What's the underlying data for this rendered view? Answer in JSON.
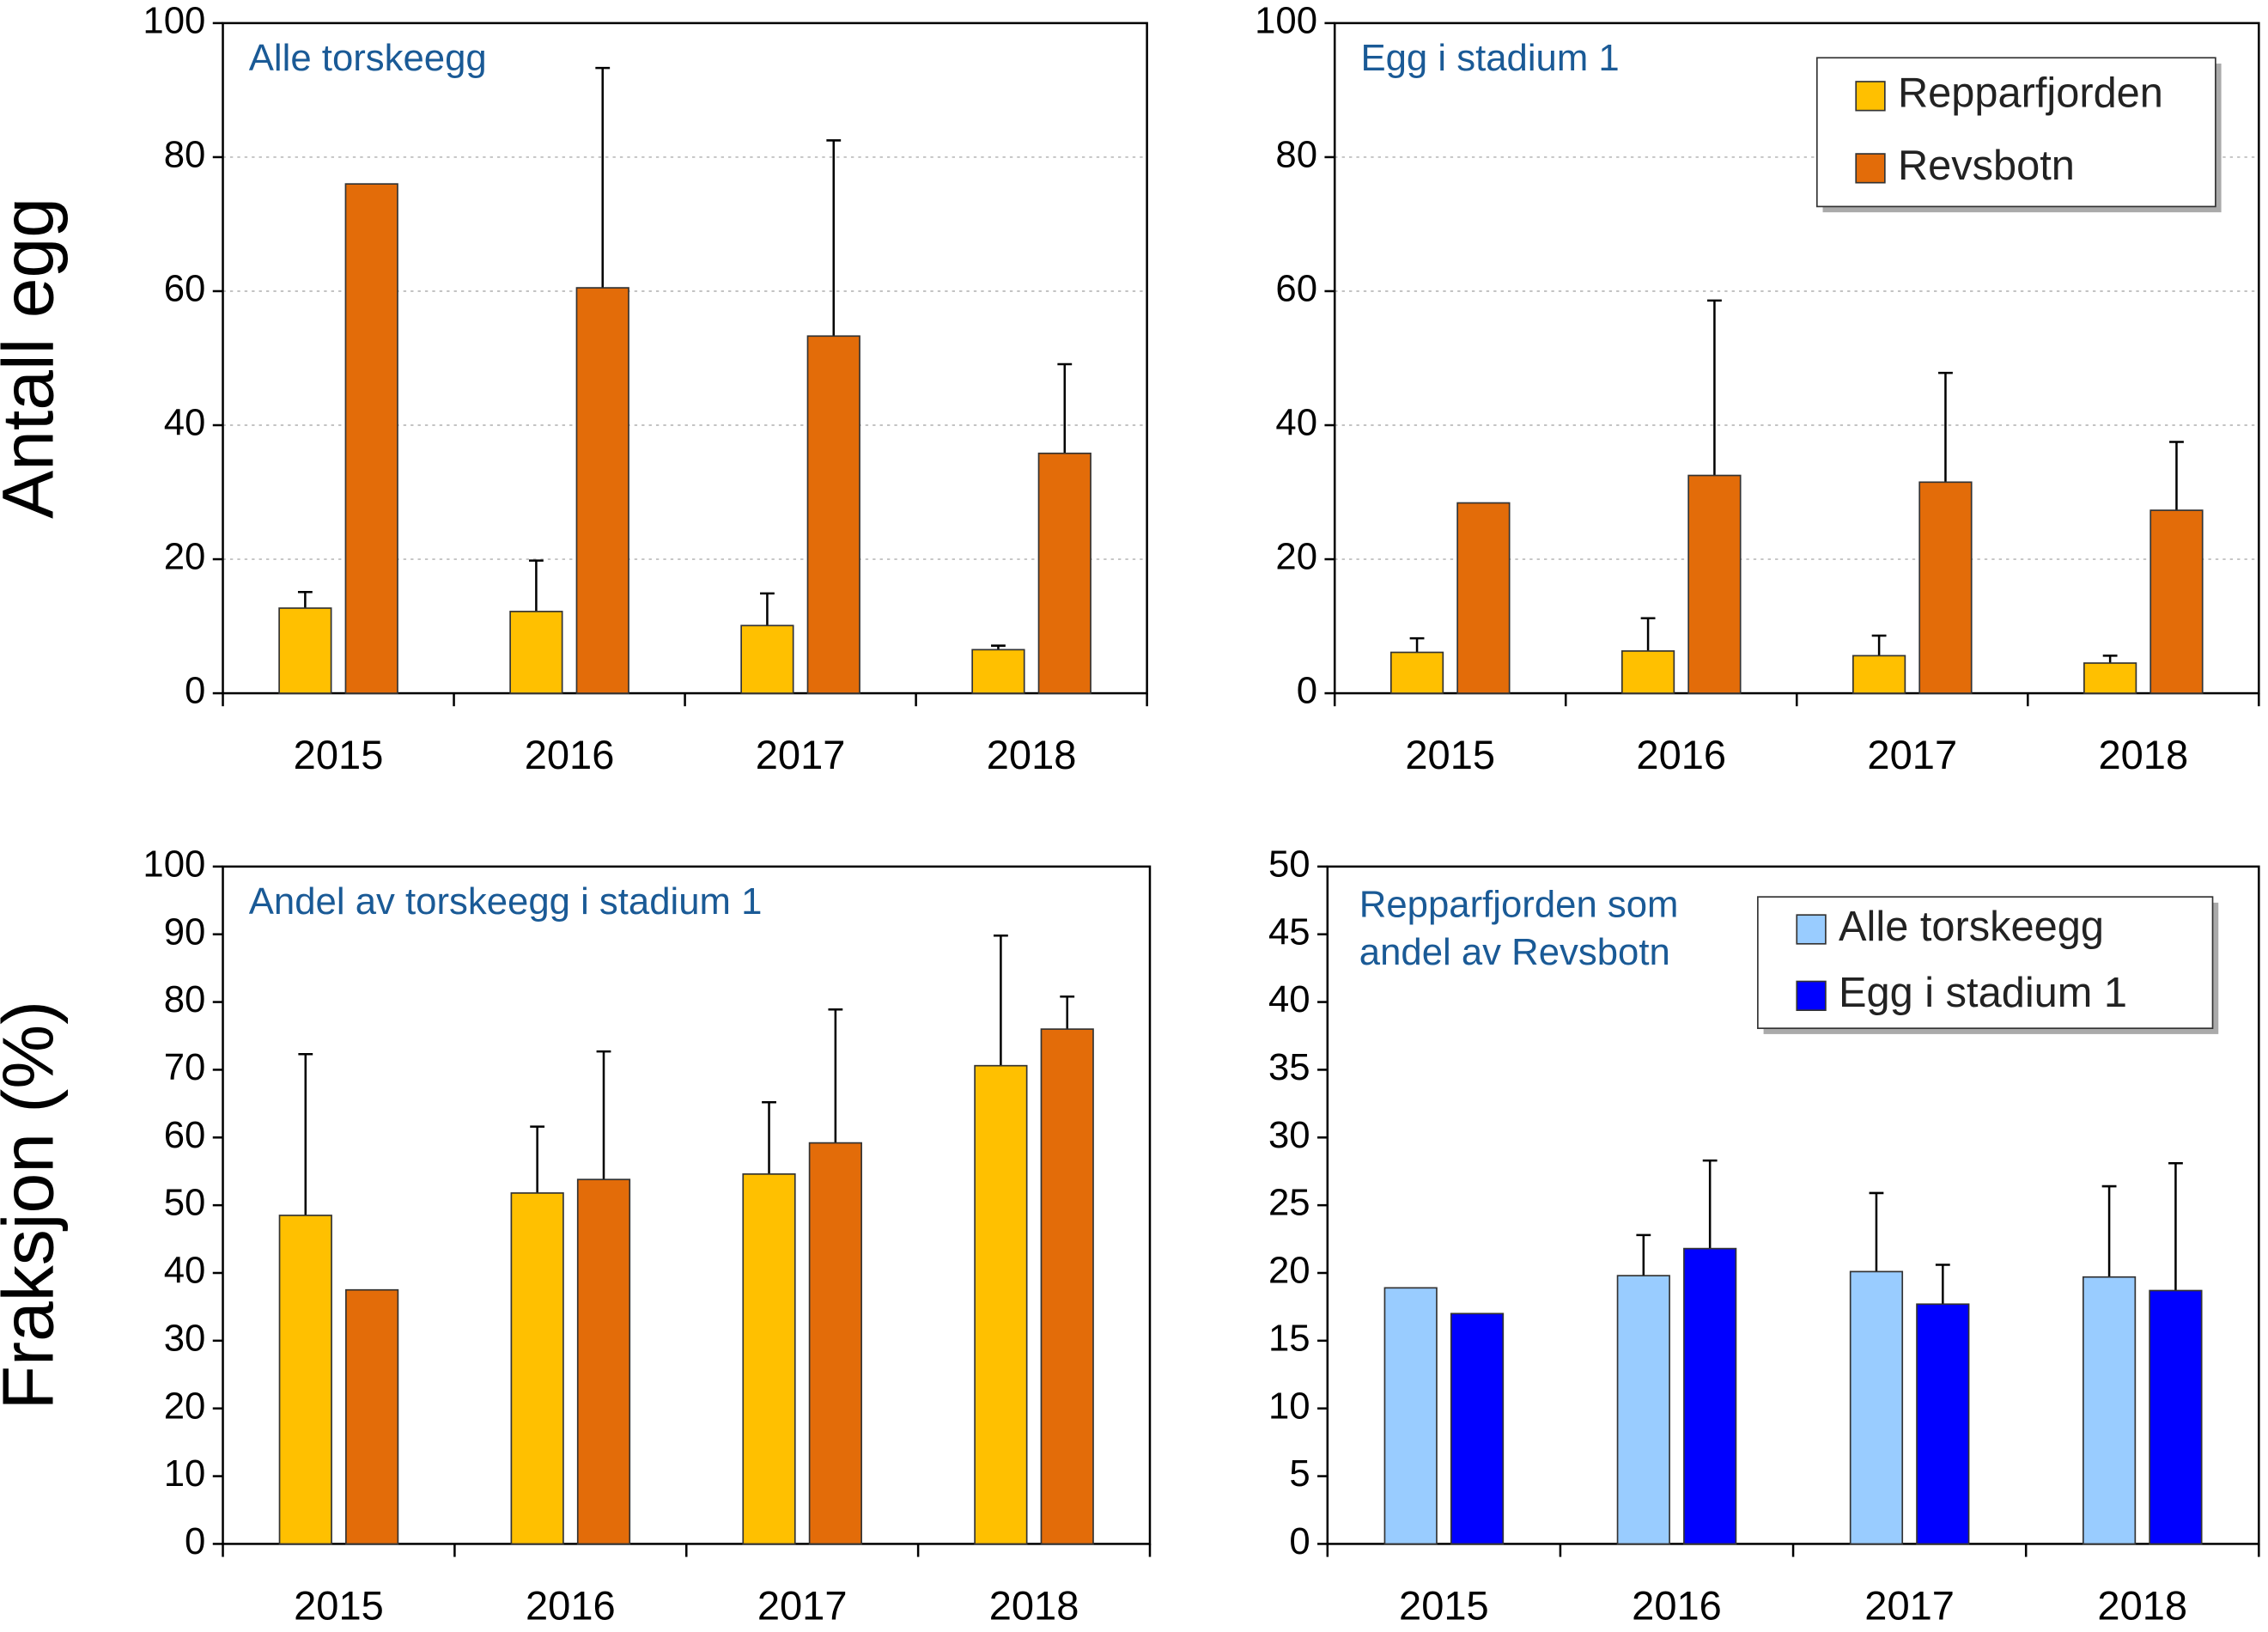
{
  "chart_data": [
    {
      "type": "bar",
      "title": "Alle torskeegg",
      "ylabel": "Antall egg",
      "categories": [
        "2015",
        "2016",
        "2017",
        "2018"
      ],
      "series": [
        {
          "name": "Repparfjorden",
          "color": "#FFC000",
          "values": [
            12.7,
            12.2,
            10.1,
            6.5
          ],
          "errors": [
            2.4,
            7.6,
            4.8,
            0.6
          ]
        },
        {
          "name": "Revsbotn",
          "color": "#E36C09",
          "values": [
            76,
            60.5,
            53.3,
            35.8
          ],
          "errors": [
            null,
            32.8,
            29.2,
            13.3
          ]
        }
      ],
      "ylim": [
        0,
        100
      ],
      "yticks": [
        0,
        20,
        40,
        60,
        80,
        100
      ],
      "grid": true
    },
    {
      "type": "bar",
      "title": "Egg i stadium 1",
      "categories": [
        "2015",
        "2016",
        "2017",
        "2018"
      ],
      "series": [
        {
          "name": "Repparfjorden",
          "color": "#FFC000",
          "values": [
            6.1,
            6.3,
            5.6,
            4.5
          ],
          "errors": [
            2.1,
            4.9,
            3.0,
            1.1
          ]
        },
        {
          "name": "Revsbotn",
          "color": "#E36C09",
          "values": [
            28.4,
            32.5,
            31.5,
            27.3
          ],
          "errors": [
            null,
            26.1,
            16.3,
            10.2
          ]
        }
      ],
      "ylim": [
        0,
        100
      ],
      "yticks": [
        0,
        20,
        40,
        60,
        80,
        100
      ],
      "grid": true,
      "legend": "upper right"
    },
    {
      "type": "bar",
      "title": "Andel av torskeegg i stadium 1",
      "ylabel": "Fraksjon (%)",
      "categories": [
        "2015",
        "2016",
        "2017",
        "2018"
      ],
      "series": [
        {
          "name": "Repparfjorden",
          "color": "#FFC000",
          "values": [
            48.5,
            51.8,
            54.6,
            70.6
          ],
          "errors": [
            23.8,
            9.8,
            10.6,
            19.2
          ]
        },
        {
          "name": "Revsbotn",
          "color": "#E36C09",
          "values": [
            37.5,
            53.8,
            59.2,
            76
          ],
          "errors": [
            null,
            18.9,
            19.7,
            4.8
          ]
        }
      ],
      "ylim": [
        0,
        100
      ],
      "yticks": [
        0,
        10,
        20,
        30,
        40,
        50,
        60,
        70,
        80,
        90,
        100
      ],
      "grid": false
    },
    {
      "type": "bar",
      "title": [
        "Repparfjorden som",
        "andel av Revsbotn"
      ],
      "categories": [
        "2015",
        "2016",
        "2017",
        "2018"
      ],
      "series": [
        {
          "name": "Alle torskeegg",
          "color": "#99CCFF",
          "values": [
            18.9,
            19.8,
            20.1,
            19.7
          ],
          "errors": [
            null,
            3.0,
            5.8,
            6.7
          ]
        },
        {
          "name": "Egg i stadium 1",
          "color": "#0000FF",
          "values": [
            17,
            21.8,
            17.7,
            18.7
          ],
          "errors": [
            null,
            6.5,
            2.9,
            9.4
          ]
        }
      ],
      "ylim": [
        0,
        50
      ],
      "yticks": [
        0,
        5,
        10,
        15,
        20,
        25,
        30,
        35,
        40,
        45,
        50
      ],
      "grid": false,
      "legend": "upper right"
    }
  ]
}
